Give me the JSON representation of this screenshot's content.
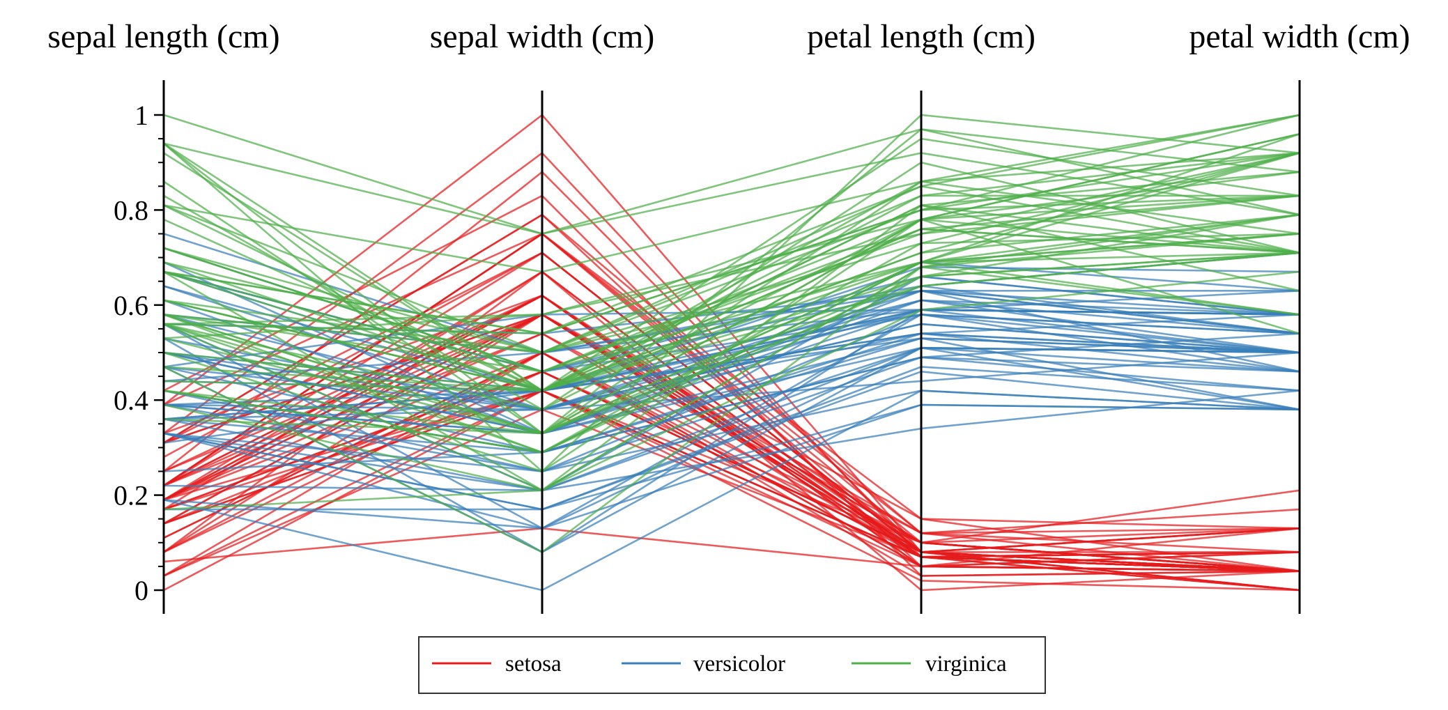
{
  "chart_data": {
    "type": "parallel-coordinates",
    "dimensions": [
      "sepal length (cm)",
      "sepal width (cm)",
      "petal length (cm)",
      "petal width (cm)"
    ],
    "y_range": [
      0,
      1
    ],
    "y_ticks": [
      0,
      0.2,
      0.4,
      0.6,
      0.8,
      1
    ],
    "y_tick_labels": [
      "0",
      "0.2",
      "0.4",
      "0.6",
      "0.8",
      "1"
    ],
    "legend": {
      "placement": "bottom-center",
      "entries": [
        "setosa",
        "versicolor",
        "virginica"
      ]
    },
    "colors": {
      "setosa": "#e41a1c",
      "versicolor": "#377eb8",
      "virginica": "#4daf4a"
    },
    "series": [
      {
        "name": "setosa",
        "lines": [
          [
            0.22,
            0.62,
            0.07,
            0.04
          ],
          [
            0.17,
            0.42,
            0.07,
            0.04
          ],
          [
            0.11,
            0.5,
            0.05,
            0.04
          ],
          [
            0.08,
            0.46,
            0.08,
            0.04
          ],
          [
            0.19,
            0.67,
            0.07,
            0.04
          ],
          [
            0.31,
            0.79,
            0.12,
            0.13
          ],
          [
            0.08,
            0.58,
            0.07,
            0.08
          ],
          [
            0.19,
            0.58,
            0.08,
            0.04
          ],
          [
            0.03,
            0.38,
            0.07,
            0.04
          ],
          [
            0.17,
            0.46,
            0.08,
            0.0
          ],
          [
            0.31,
            0.71,
            0.08,
            0.04
          ],
          [
            0.14,
            0.58,
            0.1,
            0.04
          ],
          [
            0.14,
            0.42,
            0.07,
            0.0
          ],
          [
            0.0,
            0.42,
            0.02,
            0.0
          ],
          [
            0.42,
            0.83,
            0.03,
            0.04
          ],
          [
            0.39,
            1.0,
            0.08,
            0.13
          ],
          [
            0.31,
            0.79,
            0.05,
            0.13
          ],
          [
            0.22,
            0.62,
            0.07,
            0.08
          ],
          [
            0.39,
            0.75,
            0.12,
            0.08
          ],
          [
            0.22,
            0.75,
            0.08,
            0.08
          ],
          [
            0.31,
            0.58,
            0.12,
            0.04
          ],
          [
            0.22,
            0.71,
            0.08,
            0.13
          ],
          [
            0.08,
            0.67,
            0.0,
            0.04
          ],
          [
            0.22,
            0.54,
            0.12,
            0.17
          ],
          [
            0.14,
            0.58,
            0.15,
            0.04
          ],
          [
            0.19,
            0.42,
            0.1,
            0.04
          ],
          [
            0.19,
            0.58,
            0.1,
            0.13
          ],
          [
            0.25,
            0.62,
            0.08,
            0.04
          ],
          [
            0.25,
            0.58,
            0.07,
            0.04
          ],
          [
            0.11,
            0.5,
            0.1,
            0.04
          ],
          [
            0.14,
            0.46,
            0.1,
            0.04
          ],
          [
            0.31,
            0.58,
            0.08,
            0.13
          ],
          [
            0.25,
            0.88,
            0.08,
            0.0
          ],
          [
            0.33,
            0.92,
            0.07,
            0.04
          ],
          [
            0.17,
            0.46,
            0.08,
            0.0
          ],
          [
            0.19,
            0.5,
            0.03,
            0.04
          ],
          [
            0.33,
            0.62,
            0.05,
            0.04
          ],
          [
            0.17,
            0.67,
            0.07,
            0.0
          ],
          [
            0.03,
            0.42,
            0.05,
            0.04
          ],
          [
            0.22,
            0.58,
            0.08,
            0.04
          ],
          [
            0.19,
            0.62,
            0.05,
            0.08
          ],
          [
            0.06,
            0.13,
            0.05,
            0.08
          ],
          [
            0.03,
            0.5,
            0.05,
            0.04
          ],
          [
            0.19,
            0.62,
            0.1,
            0.21
          ],
          [
            0.22,
            0.75,
            0.15,
            0.13
          ],
          [
            0.14,
            0.42,
            0.07,
            0.08
          ],
          [
            0.22,
            0.75,
            0.1,
            0.04
          ],
          [
            0.08,
            0.5,
            0.07,
            0.04
          ],
          [
            0.28,
            0.71,
            0.08,
            0.04
          ],
          [
            0.19,
            0.54,
            0.07,
            0.04
          ]
        ]
      },
      {
        "name": "versicolor",
        "lines": [
          [
            0.75,
            0.5,
            0.63,
            0.54
          ],
          [
            0.58,
            0.5,
            0.59,
            0.58
          ],
          [
            0.72,
            0.46,
            0.66,
            0.58
          ],
          [
            0.33,
            0.13,
            0.51,
            0.5
          ],
          [
            0.61,
            0.33,
            0.61,
            0.58
          ],
          [
            0.39,
            0.33,
            0.59,
            0.5
          ],
          [
            0.56,
            0.54,
            0.63,
            0.63
          ],
          [
            0.17,
            0.17,
            0.39,
            0.38
          ],
          [
            0.64,
            0.38,
            0.61,
            0.5
          ],
          [
            0.25,
            0.29,
            0.49,
            0.54
          ],
          [
            0.19,
            0.0,
            0.42,
            0.38
          ],
          [
            0.44,
            0.42,
            0.54,
            0.58
          ],
          [
            0.47,
            0.08,
            0.51,
            0.38
          ],
          [
            0.5,
            0.38,
            0.63,
            0.54
          ],
          [
            0.36,
            0.38,
            0.44,
            0.5
          ],
          [
            0.67,
            0.46,
            0.58,
            0.54
          ],
          [
            0.36,
            0.42,
            0.59,
            0.58
          ],
          [
            0.42,
            0.29,
            0.53,
            0.38
          ],
          [
            0.53,
            0.08,
            0.59,
            0.58
          ],
          [
            0.36,
            0.21,
            0.49,
            0.42
          ],
          [
            0.44,
            0.5,
            0.64,
            0.71
          ],
          [
            0.5,
            0.33,
            0.51,
            0.5
          ],
          [
            0.56,
            0.21,
            0.66,
            0.58
          ],
          [
            0.5,
            0.33,
            0.63,
            0.46
          ],
          [
            0.58,
            0.38,
            0.56,
            0.5
          ],
          [
            0.64,
            0.42,
            0.58,
            0.54
          ],
          [
            0.69,
            0.33,
            0.64,
            0.54
          ],
          [
            0.67,
            0.42,
            0.68,
            0.67
          ],
          [
            0.47,
            0.38,
            0.59,
            0.58
          ],
          [
            0.39,
            0.25,
            0.42,
            0.38
          ],
          [
            0.33,
            0.17,
            0.47,
            0.42
          ],
          [
            0.33,
            0.17,
            0.46,
            0.38
          ],
          [
            0.42,
            0.29,
            0.49,
            0.46
          ],
          [
            0.47,
            0.29,
            0.69,
            0.63
          ],
          [
            0.31,
            0.42,
            0.59,
            0.58
          ],
          [
            0.47,
            0.58,
            0.59,
            0.63
          ],
          [
            0.67,
            0.46,
            0.63,
            0.58
          ],
          [
            0.56,
            0.13,
            0.58,
            0.5
          ],
          [
            0.36,
            0.42,
            0.53,
            0.5
          ],
          [
            0.33,
            0.21,
            0.51,
            0.5
          ],
          [
            0.33,
            0.25,
            0.58,
            0.46
          ],
          [
            0.5,
            0.42,
            0.61,
            0.54
          ],
          [
            0.42,
            0.25,
            0.51,
            0.46
          ],
          [
            0.19,
            0.13,
            0.39,
            0.38
          ],
          [
            0.36,
            0.29,
            0.54,
            0.5
          ],
          [
            0.39,
            0.42,
            0.54,
            0.46
          ],
          [
            0.39,
            0.38,
            0.54,
            0.5
          ],
          [
            0.53,
            0.38,
            0.56,
            0.5
          ],
          [
            0.22,
            0.21,
            0.34,
            0.42
          ],
          [
            0.39,
            0.33,
            0.53,
            0.5
          ]
        ]
      },
      {
        "name": "virginica",
        "lines": [
          [
            0.56,
            0.54,
            0.85,
            1.0
          ],
          [
            0.42,
            0.29,
            0.69,
            0.75
          ],
          [
            0.78,
            0.42,
            0.83,
            0.83
          ],
          [
            0.56,
            0.38,
            0.78,
            0.71
          ],
          [
            0.61,
            0.42,
            0.81,
            0.88
          ],
          [
            0.92,
            0.42,
            0.95,
            0.83
          ],
          [
            0.17,
            0.21,
            0.59,
            0.67
          ],
          [
            0.83,
            0.38,
            0.9,
            0.71
          ],
          [
            0.67,
            0.21,
            0.81,
            0.71
          ],
          [
            0.81,
            0.67,
            0.86,
            1.0
          ],
          [
            0.61,
            0.5,
            0.69,
            0.79
          ],
          [
            0.58,
            0.29,
            0.73,
            0.75
          ],
          [
            0.69,
            0.42,
            0.76,
            0.83
          ],
          [
            0.39,
            0.21,
            0.68,
            0.79
          ],
          [
            0.42,
            0.33,
            0.69,
            0.96
          ],
          [
            0.58,
            0.5,
            0.73,
            0.92
          ],
          [
            0.61,
            0.42,
            0.76,
            0.71
          ],
          [
            0.94,
            0.75,
            0.97,
            0.88
          ],
          [
            0.94,
            0.25,
            1.0,
            0.92
          ],
          [
            0.47,
            0.08,
            0.68,
            0.58
          ],
          [
            0.72,
            0.5,
            0.8,
            0.92
          ],
          [
            0.36,
            0.33,
            0.66,
            0.79
          ],
          [
            0.94,
            0.33,
            0.97,
            0.79
          ],
          [
            0.56,
            0.29,
            0.66,
            0.71
          ],
          [
            0.67,
            0.54,
            0.8,
            0.83
          ],
          [
            0.81,
            0.5,
            0.85,
            0.71
          ],
          [
            0.53,
            0.33,
            0.64,
            0.71
          ],
          [
            0.5,
            0.42,
            0.66,
            0.71
          ],
          [
            0.58,
            0.33,
            0.78,
            0.83
          ],
          [
            0.81,
            0.42,
            0.81,
            0.63
          ],
          [
            0.86,
            0.33,
            0.86,
            0.75
          ],
          [
            1.0,
            0.75,
            0.92,
            0.79
          ],
          [
            0.58,
            0.33,
            0.78,
            0.88
          ],
          [
            0.56,
            0.33,
            0.69,
            0.58
          ],
          [
            0.5,
            0.25,
            0.78,
            0.54
          ],
          [
            0.94,
            0.42,
            0.86,
            0.92
          ],
          [
            0.56,
            0.58,
            0.78,
            0.96
          ],
          [
            0.58,
            0.46,
            0.76,
            0.71
          ],
          [
            0.47,
            0.42,
            0.64,
            0.71
          ],
          [
            0.72,
            0.46,
            0.75,
            0.83
          ],
          [
            0.67,
            0.46,
            0.78,
            0.96
          ],
          [
            0.72,
            0.46,
            0.69,
            0.92
          ],
          [
            0.42,
            0.29,
            0.69,
            0.75
          ],
          [
            0.69,
            0.5,
            0.83,
            0.92
          ],
          [
            0.67,
            0.54,
            0.8,
            1.0
          ],
          [
            0.67,
            0.42,
            0.71,
            0.92
          ],
          [
            0.56,
            0.21,
            0.68,
            0.75
          ],
          [
            0.61,
            0.42,
            0.71,
            0.79
          ],
          [
            0.53,
            0.58,
            0.75,
            0.92
          ],
          [
            0.44,
            0.42,
            0.69,
            0.71
          ]
        ]
      }
    ]
  }
}
